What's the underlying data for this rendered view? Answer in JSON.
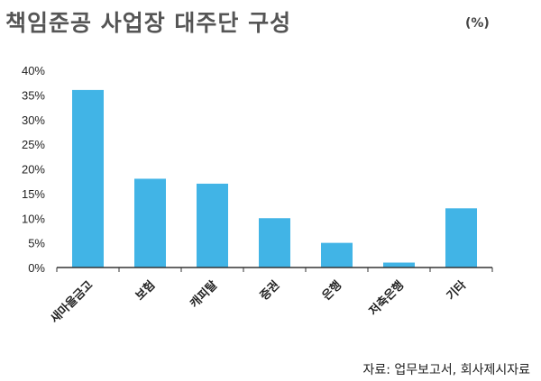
{
  "title": "책임준공 사업장 대주단 구성",
  "unit": "(%)",
  "source": "자료: 업무보고서, 회사제시자료",
  "colors": {
    "bar": "#41b4e6",
    "axis": "#333333"
  },
  "chart_data": {
    "type": "bar",
    "title": "책임준공 사업장 대주단 구성",
    "categories": [
      "새마을금고",
      "보험",
      "캐피탈",
      "증권",
      "은행",
      "저축은행",
      "기타"
    ],
    "values": [
      36,
      18,
      17,
      10,
      5,
      1,
      12
    ],
    "ylabel": "(%)",
    "xlabel": "",
    "ylim": [
      0,
      40
    ],
    "yticks": [
      "0%",
      "5%",
      "10%",
      "15%",
      "20%",
      "25%",
      "30%",
      "35%",
      "40%"
    ],
    "grid": false,
    "legend": "none"
  }
}
